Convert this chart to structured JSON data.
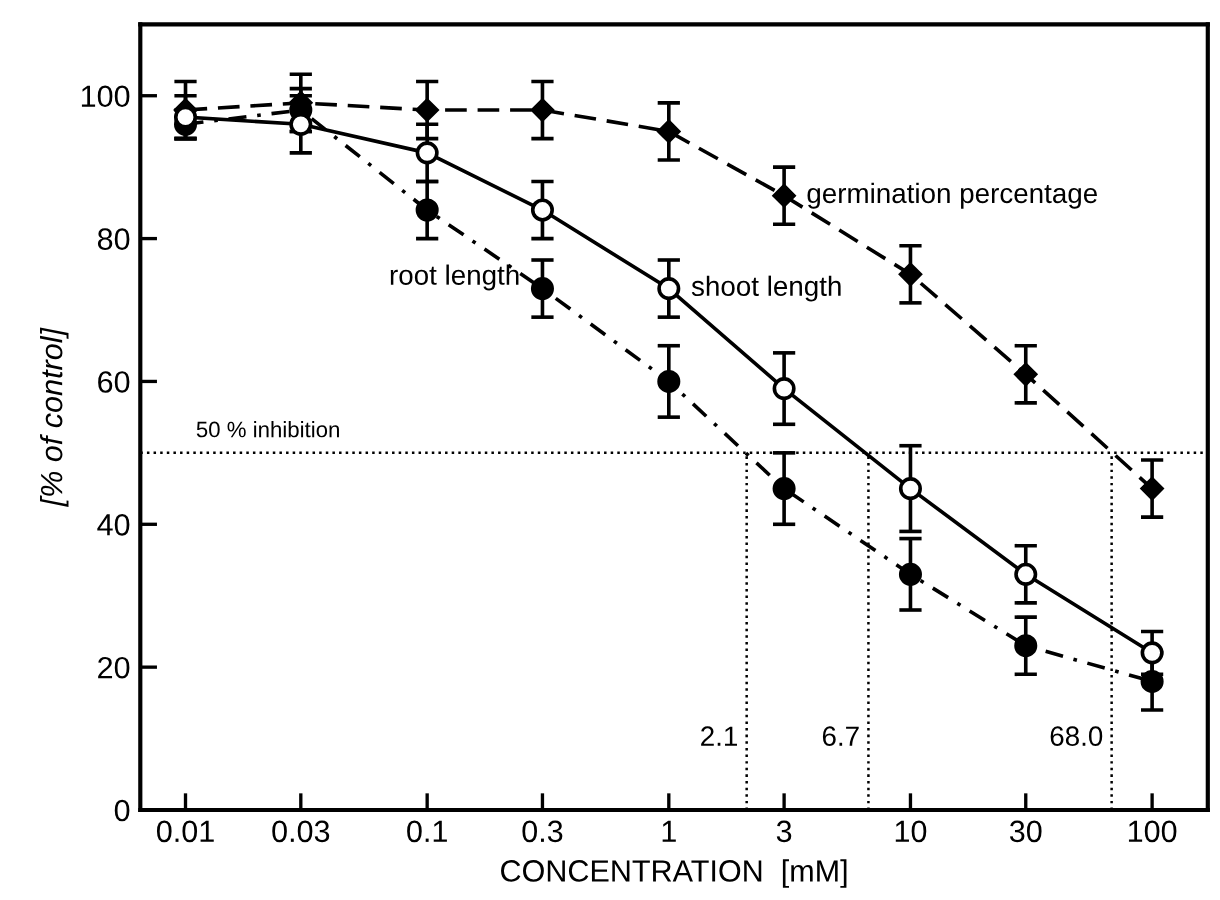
{
  "chart_data": {
    "type": "line",
    "xlabel": "CONCENTRATION  [mM]",
    "ylabel": "[% of control]",
    "x": [
      0.01,
      0.03,
      0.1,
      0.3,
      1,
      3,
      10,
      30,
      100
    ],
    "series": [
      {
        "name": "germination percentage",
        "color": "#000000",
        "marker": "diamond",
        "line_style": "dashed",
        "values": [
          98,
          99,
          98,
          98,
          95,
          86,
          75,
          61,
          45
        ],
        "errors": [
          4,
          4,
          4,
          4,
          4,
          4,
          4,
          4,
          4
        ]
      },
      {
        "name": "shoot length",
        "color": "#000000",
        "marker": "circle",
        "line_style": "solid",
        "values": [
          97,
          96,
          92,
          84,
          73,
          59,
          45,
          33,
          22
        ],
        "errors": [
          3,
          4,
          4,
          4,
          4,
          5,
          6,
          4,
          3
        ]
      },
      {
        "name": "root length",
        "color": "#000000",
        "marker": "circle",
        "line_style": "dashdot",
        "values": [
          96,
          98,
          84,
          73,
          60,
          45,
          33,
          23,
          18
        ],
        "errors": [
          2,
          3,
          4,
          4,
          5,
          5,
          5,
          4,
          4
        ]
      }
    ],
    "xlim": [
      0.0065,
      170
    ],
    "xticks": [
      0.01,
      0.03,
      0.1,
      0.3,
      1,
      3,
      10,
      30,
      100
    ],
    "ylim": [
      0,
      110
    ],
    "yticks": [
      0,
      20,
      40,
      60,
      80,
      100
    ],
    "ref_lines": [
      {
        "axis": "y",
        "value": 50,
        "label": "50 % inhibition",
        "line_style": "dotted"
      },
      {
        "axis": "x",
        "value": 2.1,
        "label": "2.1",
        "line_style": "dotted"
      },
      {
        "axis": "x",
        "value": 6.7,
        "label": "6.7",
        "line_style": "dotted"
      },
      {
        "axis": "x",
        "value": 68.0,
        "label": "68.0",
        "line_style": "dotted"
      }
    ],
    "log": "x",
    "grid": false,
    "legend": false
  }
}
